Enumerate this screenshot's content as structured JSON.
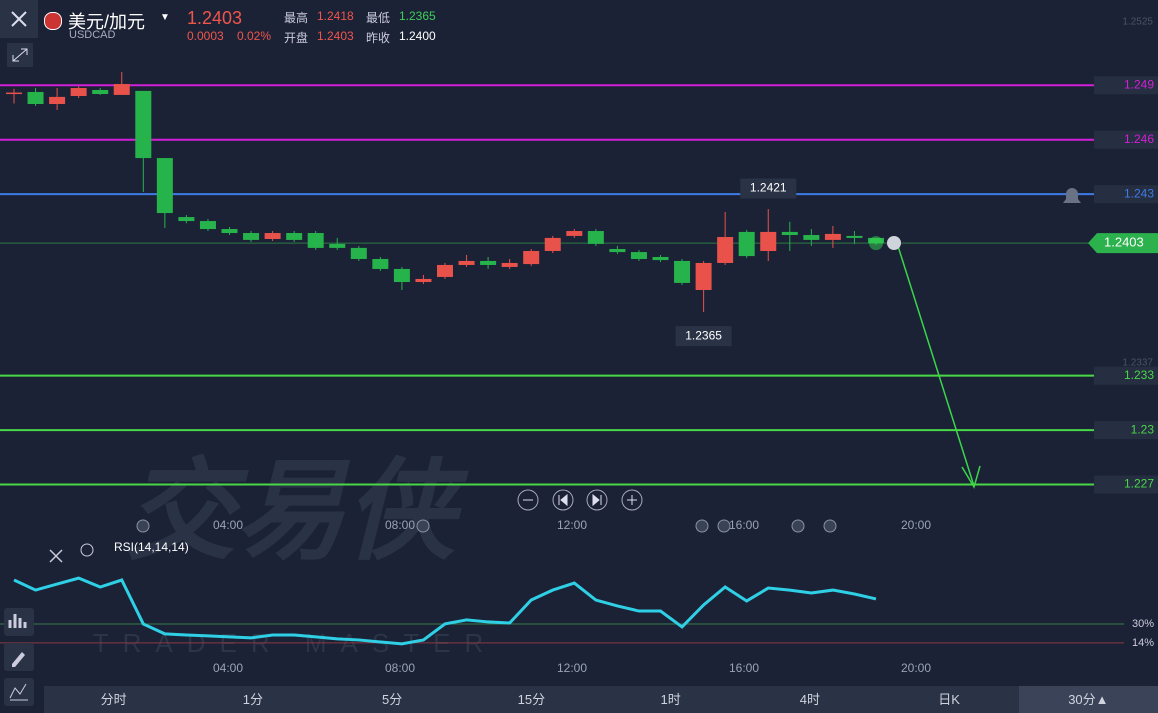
{
  "header": {
    "pair": "美元/加元",
    "symbol": "USDCAD",
    "price": "1.2403",
    "change": "0.0003",
    "change_pct": "0.02%",
    "stats": [
      {
        "label": "最高",
        "value": "1.2418",
        "color": "#f0554c"
      },
      {
        "label": "开盘",
        "value": "1.2403",
        "color": "#f0554c"
      },
      {
        "label": "最低",
        "value": "1.2365",
        "color": "#3ecf5a"
      },
      {
        "label": "昨收",
        "value": "1.2400",
        "color": "#ffffff"
      }
    ]
  },
  "chart_data": {
    "type": "candlestick",
    "up_color": "#e8524a",
    "down_color": "#27b34b",
    "ylim": [
      1.2267,
      1.2537
    ],
    "yticks": [
      1.2525,
      1.2337
    ],
    "open": [
      1.2486,
      1.24863,
      1.24797,
      1.24841,
      1.24874,
      1.24847,
      1.24869,
      1.24499,
      1.24174,
      1.24152,
      1.24108,
      1.24086,
      1.24053,
      1.24086,
      1.24086,
      1.24026,
      1.24004,
      1.23943,
      1.23888,
      1.23816,
      1.23844,
      1.2391,
      1.23932,
      1.23899,
      1.23915,
      1.23987,
      1.2407,
      1.24097,
      1.23998,
      1.23981,
      1.23954,
      1.23932,
      1.23772,
      1.23921,
      1.24092,
      1.23987,
      1.24092,
      1.24075,
      1.24048,
      1.2407,
      1.24059
    ],
    "high": [
      1.2488,
      1.24885,
      1.24885,
      1.24895,
      1.24885,
      1.24973,
      1.24869,
      1.24499,
      1.24185,
      1.24163,
      1.24119,
      1.24097,
      1.24097,
      1.24097,
      1.24097,
      1.24059,
      1.24015,
      1.23954,
      1.23899,
      1.23855,
      1.23921,
      1.23965,
      1.23954,
      1.23943,
      1.23998,
      1.2407,
      1.24108,
      1.24108,
      1.24015,
      1.23992,
      1.23965,
      1.23943,
      1.23932,
      1.24202,
      1.24103,
      1.24218,
      1.24148,
      1.24108,
      1.24125,
      1.24097,
      1.24059
    ],
    "low": [
      1.248,
      1.24786,
      1.24764,
      1.2483,
      1.24847,
      1.24847,
      1.24312,
      1.24114,
      1.2414,
      1.24097,
      1.24075,
      1.24037,
      1.24042,
      1.24037,
      1.23993,
      1.23993,
      1.23932,
      1.23877,
      1.23772,
      1.23805,
      1.23833,
      1.23899,
      1.23888,
      1.23888,
      1.23904,
      1.23976,
      1.24059,
      1.24015,
      1.2397,
      1.23932,
      1.23926,
      1.238,
      1.23651,
      1.2391,
      1.23948,
      1.23932,
      1.23987,
      1.24015,
      1.24004,
      1.24026,
      1.2402
    ],
    "close": [
      1.2486,
      1.24797,
      1.24836,
      1.24885,
      1.24852,
      1.24907,
      1.24499,
      1.24196,
      1.24152,
      1.24108,
      1.24086,
      1.24048,
      1.24086,
      1.24048,
      1.24004,
      1.24004,
      1.23943,
      1.23888,
      1.23816,
      1.23833,
      1.2391,
      1.23932,
      1.2391,
      1.23921,
      1.23987,
      1.24059,
      1.24097,
      1.24026,
      1.23981,
      1.23943,
      1.23937,
      1.23811,
      1.23921,
      1.24064,
      1.23959,
      1.24092,
      1.24075,
      1.24048,
      1.24081,
      1.24059,
      1.2403
    ],
    "levels": [
      {
        "value": 1.249,
        "color": "#d21fd8"
      },
      {
        "value": 1.246,
        "color": "#d21fd8"
      },
      {
        "value": 1.243,
        "color": "#3f7be6"
      },
      {
        "value": 1.233,
        "color": "#49d845"
      },
      {
        "value": 1.23,
        "color": "#49d845"
      },
      {
        "value": 1.227,
        "color": "#49d845"
      }
    ],
    "current": 1.2403,
    "current_label": "1.2403",
    "annotations": [
      {
        "value": 1.2421,
        "label": "1.2421"
      },
      {
        "value": 1.2365,
        "label": "1.2365"
      }
    ],
    "x_labels": [
      "04:00",
      "08:00",
      "12:00",
      "16:00",
      "20:00"
    ]
  },
  "rsi": {
    "type": "line",
    "label": "RSI(14,14,14)",
    "color": "#2fd0e6",
    "ylim": [
      8,
      84
    ],
    "levels": [
      {
        "value": 30,
        "label": "30%"
      },
      {
        "value": 14,
        "label": "14%"
      }
    ],
    "values": [
      67.1,
      58.6,
      63.7,
      68.7,
      61.2,
      67.1,
      30,
      21.6,
      20.7,
      19.9,
      19.1,
      18.2,
      20.7,
      20.7,
      19.1,
      17.4,
      16.5,
      14.8,
      13.2,
      16.5,
      30,
      33.4,
      31.7,
      30.8,
      50.2,
      58.6,
      64.5,
      50.2,
      45.2,
      40.9,
      40.9,
      27.5,
      46,
      61.2,
      49.4,
      60.3,
      58.6,
      56.1,
      58.6,
      55.3,
      51.1
    ],
    "x_labels": [
      "04:00",
      "08:00",
      "12:00",
      "16:00",
      "20:00"
    ]
  },
  "watermark": {
    "cn": "交易侠",
    "en": "TRADER MASTER"
  },
  "tabs": [
    "分时",
    "1分",
    "5分",
    "15分",
    "1时",
    "4时",
    "日K",
    "30分▲"
  ]
}
